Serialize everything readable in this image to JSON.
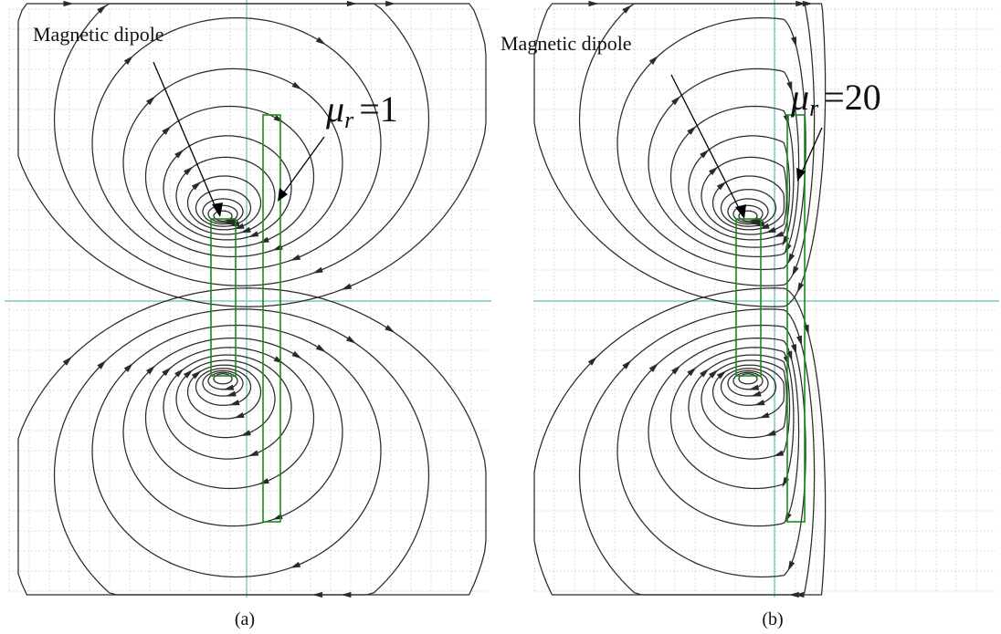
{
  "panels": [
    {
      "id": "a",
      "label": "Magnetic dipole",
      "mu_symbol": "μ",
      "mu_subscript": "r",
      "mu_equals": "=",
      "mu_value": "1",
      "caption": "(a)",
      "relative_permeability": 1
    },
    {
      "id": "b",
      "label": "Magnetic dipole",
      "mu_symbol": "μ",
      "mu_subscript": "r",
      "mu_equals": "=",
      "mu_value": "20",
      "caption": "(b)",
      "relative_permeability": 20
    }
  ],
  "colors": {
    "field_lines": "#2a2a2a",
    "plate_outline": "#1a8a1a",
    "axes": "#7fc8c0",
    "grid": "#c8c8c8"
  }
}
